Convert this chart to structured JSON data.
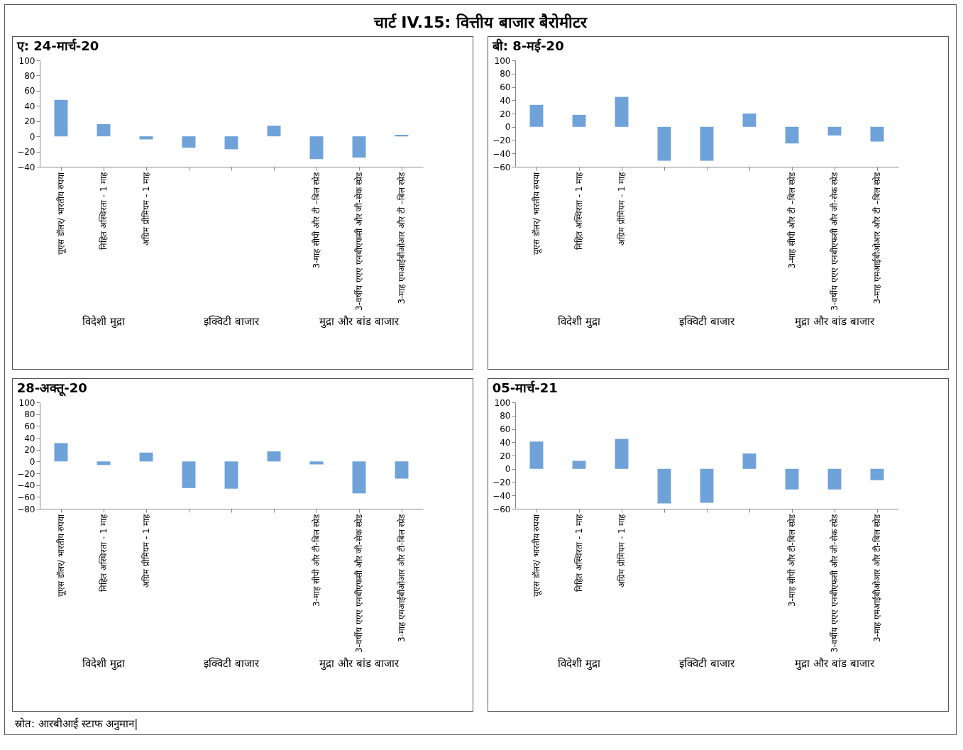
{
  "chart_data": [
    {
      "type": "other",
      "title": "चार्ट IV.15: वित्तीय बाजार बैरोमीटर",
      "annotations": [
        "स्रोत: आरबीआई स्टाफ अनुमान|"
      ]
    },
    {
      "type": "bar",
      "title": "ए: 24-मार्च-20",
      "categories": [
        "यूएस डॉलर/ भारतीय रुपया",
        "निहित अस्थिरता - 1 माह",
        "अग्रिम प्रीमियम - 1 माह",
        null,
        null,
        null,
        "3-माह सीपी और टी –बिल स्प्रेड",
        "3-वर्षीय एएए एनबीएफसी और जी-सेक स्प्रेड",
        "3-माह एमआईबीओआर और टी –बिल स्प्रेड"
      ],
      "values": [
        48,
        16,
        -4,
        -15,
        -17,
        14,
        -30,
        -28,
        2
      ],
      "color": "#6fa2d9",
      "ylim": [
        -40,
        100
      ],
      "yticks": [
        -40,
        -20,
        0,
        20,
        40,
        60,
        80,
        100
      ],
      "annotations": [
        "विदेशी मुद्रा",
        "इक्विटी बाजार",
        "मुद्रा और बांड बाजार"
      ]
    },
    {
      "type": "bar",
      "title": "बी: 8-मई-20",
      "categories": [
        "यूएस डॉलर/ भारतीय रुपया",
        "निहित अस्थिरता - 1 माह",
        "अग्रिम प्रीमियम - 1 माह",
        null,
        null,
        null,
        "3-माह सीपी और टी –बिल स्प्रेड",
        "3-वर्षीय एएए एनबीएफसी और जी-सेक स्प्रेड",
        "3-माह एमआईबीओआर और टी –बिल स्प्रेड"
      ],
      "values": [
        33,
        18,
        45,
        -51,
        -51,
        20,
        -25,
        -13,
        -22
      ],
      "color": "#6fa2d9",
      "ylim": [
        -60,
        100
      ],
      "yticks": [
        -60,
        -40,
        -20,
        0,
        20,
        40,
        60,
        80,
        100
      ],
      "annotations": [
        "विदेशी मुद्रा",
        "इक्विटी बाजार",
        "मुद्रा और बांड बाजार"
      ]
    },
    {
      "type": "bar",
      "title": "28-अक्तू-20",
      "categories": [
        "यूएस डॉलर/ भारतीय रुपया",
        "निहित अस्थिरता - 1 माह",
        "अग्रिम प्रीमियम - 1 माह",
        null,
        null,
        null,
        "3-माह सीपी और टी-बिल स्प्रेड",
        "3-वर्षीय एएए एनबीएफसी और जी-सेक स्प्रेड",
        "3-माह एमआईबीओआर और टी-बिल स्प्रेड"
      ],
      "values": [
        31,
        -6,
        15,
        -45,
        -46,
        17,
        -5,
        -54,
        -29
      ],
      "color": "#6fa2d9",
      "ylim": [
        -80,
        100
      ],
      "yticks": [
        -80,
        -60,
        -40,
        -20,
        0,
        20,
        40,
        60,
        80,
        100
      ],
      "annotations": [
        "विदेशी मुद्रा",
        "इक्विटी बाजार",
        "मुद्रा और बांड बाजार"
      ]
    },
    {
      "type": "bar",
      "title": "05-मार्च-21",
      "categories": [
        "यूएस डॉलर/ भारतीय रुपया",
        "निहित अस्थिरता - 1 माह",
        "अग्रिम प्रीमियम - 1 माह",
        null,
        null,
        null,
        "3-माह सीपी और टी-बिल स्प्रेड",
        "3-वर्षीय एएए एनबीएफसी और जी-सेक स्प्रेड",
        "3-माह एमआईबीओआर और टी-बिल स्प्रेड"
      ],
      "values": [
        41,
        12,
        45,
        -52,
        -51,
        23,
        -31,
        -31,
        -17
      ],
      "color": "#6fa2d9",
      "ylim": [
        -60,
        100
      ],
      "yticks": [
        -60,
        -40,
        -20,
        0,
        20,
        40,
        60,
        80,
        100
      ],
      "annotations": [
        "विदेशी मुद्रा",
        "इक्विटी बाजार",
        "मुद्रा और बांड बाजार"
      ]
    }
  ]
}
